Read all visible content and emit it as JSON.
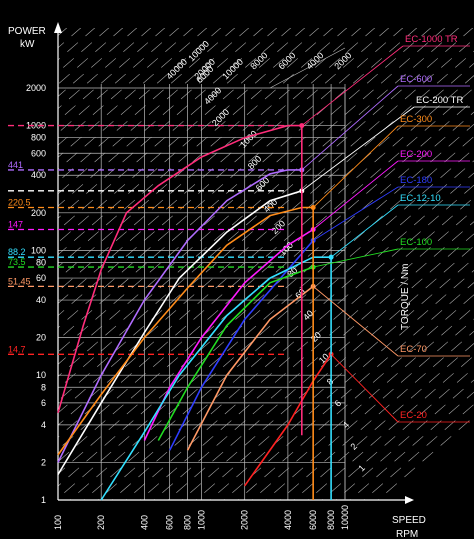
{
  "chart_data": {
    "type": "line",
    "title": "",
    "scale": "log-log",
    "grid": true,
    "background": "#000000",
    "y_axis": {
      "label_line1": "POWER",
      "label_line2": "kW",
      "range": [
        1,
        2000
      ],
      "ticks": [
        1,
        2,
        4,
        6,
        8,
        10,
        20,
        40,
        60,
        80,
        100,
        200,
        400,
        600,
        800,
        1000,
        2000
      ],
      "tick_labels": [
        "1",
        "2",
        "4",
        "6",
        "8",
        "10",
        "20",
        "40",
        "60",
        "80",
        "100",
        "200",
        "400",
        "600",
        "800",
        "1000",
        "2000"
      ],
      "extra_ticks": [
        400,
        600,
        800
      ],
      "extra_tick_labels": [
        "400",
        "600",
        "800"
      ]
    },
    "x_axis": {
      "label_line1": "SPEED",
      "label_line2": "RPM",
      "range": [
        100,
        10000
      ],
      "ticks": [
        100,
        200,
        400,
        600,
        800,
        1000,
        2000,
        4000,
        6000,
        8000,
        10000
      ],
      "tick_labels": [
        "100",
        "200",
        "400",
        "600",
        "800",
        "1000",
        "2000",
        "4000",
        "6000",
        "8000",
        "10000"
      ]
    },
    "torque_axis": {
      "label": "TORQUE / Nm",
      "tick_values": [
        1,
        2,
        4,
        6,
        8,
        10,
        20,
        40,
        60,
        80,
        100,
        200,
        400,
        600,
        800,
        1000,
        2000,
        4000,
        6000,
        10000
      ],
      "tick_labels": [
        "1",
        "2",
        "4",
        "6",
        "8",
        "10",
        "20",
        "40",
        "60",
        "80",
        "100",
        "200",
        "400",
        "600",
        "800",
        "1000",
        "2000",
        "4000",
        "6000",
        "10000"
      ]
    },
    "power_markers": [
      {
        "value": 1000,
        "label": "",
        "color": "#ff2d7a"
      },
      {
        "value": 441,
        "label": "441",
        "color": "#b06cff"
      },
      {
        "value": 300,
        "label": "",
        "color": "#ffffff"
      },
      {
        "value": 220.5,
        "label": "220.5",
        "color": "#ff8c1a"
      },
      {
        "value": 147,
        "label": "147",
        "color": "#ff1aff"
      },
      {
        "value": 88.2,
        "label": "88.2",
        "color": "#33e0ff"
      },
      {
        "value": 73.5,
        "label": "73.5",
        "color": "#22dd22"
      },
      {
        "value": 51.45,
        "label": "51.45",
        "color": "#ff9966"
      },
      {
        "value": 14.7,
        "label": "14.7",
        "color": "#ff2222"
      }
    ],
    "series": [
      {
        "name": "EC-1000 TR",
        "color": "#ff2d7a",
        "x": [
          100,
          150,
          200,
          300,
          500,
          1000,
          2000,
          4000,
          5000
        ],
        "y": [
          5,
          25,
          70,
          200,
          330,
          560,
          800,
          1000,
          1000
        ]
      },
      {
        "name": "EC-600",
        "color": "#b06cff",
        "x": [
          100,
          200,
          400,
          800,
          1500,
          3000,
          4000,
          5000
        ],
        "y": [
          2,
          10,
          40,
          120,
          250,
          410,
          441,
          441
        ]
      },
      {
        "name": "EC-200 TR",
        "color": "#ffffff",
        "x": [
          100,
          200,
          400,
          700,
          1500,
          3000,
          5000
        ],
        "y": [
          1.6,
          6,
          22,
          60,
          140,
          250,
          300
        ]
      },
      {
        "name": "EC-300",
        "color": "#ff8c1a",
        "x": [
          100,
          200,
          400,
          800,
          1500,
          3000,
          5000,
          6000
        ],
        "y": [
          2.3,
          7,
          20,
          50,
          110,
          190,
          220.5,
          220.5
        ]
      },
      {
        "name": "EC-200",
        "color": "#ff1aff",
        "x": [
          400,
          600,
          1000,
          2000,
          4000,
          6000
        ],
        "y": [
          3,
          8,
          20,
          55,
          110,
          147
        ]
      },
      {
        "name": "EC-180",
        "color": "#2f3dff",
        "x": [
          600,
          1000,
          2000,
          4000,
          6000
        ],
        "y": [
          2.5,
          8,
          28,
          70,
          120
        ]
      },
      {
        "name": "EC-12-10",
        "color": "#33e0ff",
        "x": [
          200,
          400,
          700,
          1500,
          3000,
          6000,
          8000
        ],
        "y": [
          1,
          3.5,
          10,
          30,
          60,
          88.2,
          88.2
        ]
      },
      {
        "name": "EC-100",
        "color": "#22dd22",
        "x": [
          500,
          800,
          1500,
          3000,
          6000
        ],
        "y": [
          3,
          8,
          25,
          55,
          73.5
        ]
      },
      {
        "name": "EC-70",
        "color": "#ff9966",
        "x": [
          800,
          1500,
          3000,
          6000
        ],
        "y": [
          2.5,
          10,
          28,
          51.45
        ]
      },
      {
        "name": "EC-20",
        "color": "#ff2222",
        "x": [
          2000,
          4000,
          6000,
          8000
        ],
        "y": [
          1.3,
          4,
          9,
          14.7
        ]
      }
    ],
    "vertical_limits": [
      {
        "series": "EC-1000 TR",
        "x": 5000,
        "y_top": 1000,
        "y_bottom": 3.3,
        "color": "#ff2d7a"
      },
      {
        "series": "EC-300",
        "x": 6000,
        "y_top": 220.5,
        "y_bottom": 1,
        "color": "#ff8c1a"
      },
      {
        "series": "EC-12-10",
        "x": 8000,
        "y_top": 88.2,
        "y_bottom": 1,
        "color": "#33e0ff"
      }
    ],
    "diagonal_labels": [
      "40000",
      "20000",
      "10000",
      "8000",
      "6000",
      "4000",
      "2000",
      "800",
      "600",
      "400",
      "200",
      "100",
      "80",
      "60",
      "40",
      "20",
      "10",
      "8",
      "6",
      "4",
      "2",
      "1"
    ]
  }
}
